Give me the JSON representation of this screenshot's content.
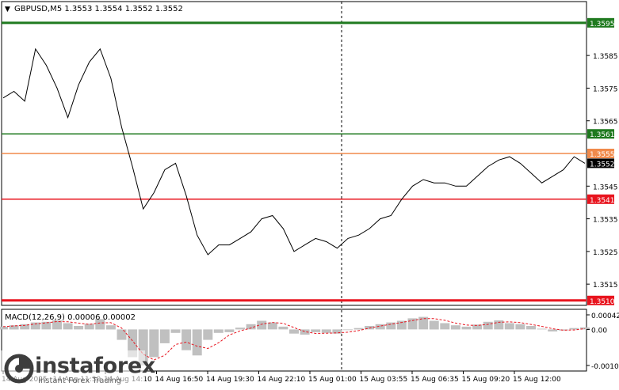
{
  "header": {
    "symbol_line": "GBPUSD,M5  1.3553 1.3554 1.3552 1.3552",
    "arrow_glyph": "▼"
  },
  "price_axis": {
    "ticks": [
      "1.3585",
      "1.3575",
      "1.3565",
      "1.3545",
      "1.3535",
      "1.3525",
      "1.3515"
    ],
    "tick_values": [
      1.3585,
      1.3575,
      1.3565,
      1.3545,
      1.3535,
      1.3525,
      1.3515
    ],
    "range": [
      1.35085,
      1.36015
    ]
  },
  "levels": [
    {
      "name": "level-1-3595",
      "label": "1.3595",
      "value": 1.3595,
      "color": "#1f7a1f",
      "label_bg": "#1f7a1f",
      "label_color": "#ffffff"
    },
    {
      "name": "level-1-3561",
      "label": "1.3561",
      "value": 1.3561,
      "color": "#1f7a1f",
      "label_bg": "#1f7a1f",
      "label_color": "#ffffff"
    },
    {
      "name": "level-1-3555",
      "label": "1.3555",
      "value": 1.3555,
      "color": "#f08a4b",
      "label_bg": "#f08a4b",
      "label_color": "#ffffff"
    },
    {
      "name": "level-1-3541",
      "label": "1.3541",
      "value": 1.3541,
      "color": "#e8141e",
      "label_bg": "#e8141e",
      "label_color": "#ffffff"
    },
    {
      "name": "level-1-3510",
      "label": "1.3510",
      "value": 1.351,
      "color": "#e8141e",
      "label_bg": "#e8141e",
      "label_color": "#ffffff"
    }
  ],
  "current_price": {
    "label": "1.3552",
    "value": 1.3552
  },
  "time_axis": {
    "labels": [
      "14 Aug 2025",
      "14 Aug 11:30",
      "14 Aug 14:10",
      "14 Aug 16:50",
      "14 Aug 19:30",
      "14 Aug 22:10",
      "15 Aug 01:00",
      "15 Aug 03:55",
      "15 Aug 06:35",
      "15 Aug 09:20",
      "15 Aug 12:00"
    ]
  },
  "macd": {
    "title": "MACD(12,26,9) 0.00006 0.00002",
    "ticks": [
      "0.00042",
      "0.00",
      "-0.00104"
    ],
    "tick_values": [
      0.00042,
      0.0,
      -0.00104
    ]
  },
  "colors": {
    "price_line": "#000000",
    "histogram": "#c0c0c0",
    "signal": "#e8141e",
    "border": "#000000",
    "grid_text": "#000000"
  },
  "chart_data": {
    "type": "line",
    "title": "GBPUSD,M5",
    "symbol": "GBPUSD",
    "timeframe": "M5",
    "ohlc_last": {
      "open": 1.3553,
      "high": 1.3554,
      "low": 1.3552,
      "close": 1.3552
    },
    "x": [
      "14 Aug 09:00",
      "14 Aug 09:30",
      "14 Aug 10:00",
      "14 Aug 10:30",
      "14 Aug 11:00",
      "14 Aug 11:30",
      "14 Aug 12:00",
      "14 Aug 12:30",
      "14 Aug 13:00",
      "14 Aug 13:30",
      "14 Aug 14:10",
      "14 Aug 14:30",
      "14 Aug 15:00",
      "14 Aug 15:30",
      "14 Aug 16:00",
      "14 Aug 16:30",
      "14 Aug 16:50",
      "14 Aug 17:30",
      "14 Aug 18:00",
      "14 Aug 18:30",
      "14 Aug 19:00",
      "14 Aug 19:30",
      "14 Aug 20:00",
      "14 Aug 20:30",
      "14 Aug 21:00",
      "14 Aug 21:30",
      "14 Aug 22:10",
      "14 Aug 22:30",
      "14 Aug 23:00",
      "14 Aug 23:30",
      "15 Aug 00:00",
      "15 Aug 00:30",
      "15 Aug 01:00",
      "15 Aug 01:30",
      "15 Aug 02:00",
      "15 Aug 02:30",
      "15 Aug 03:00",
      "15 Aug 03:30",
      "15 Aug 03:55",
      "15 Aug 04:30",
      "15 Aug 05:00",
      "15 Aug 05:30",
      "15 Aug 06:00",
      "15 Aug 06:35",
      "15 Aug 07:00",
      "15 Aug 07:30",
      "15 Aug 08:00",
      "15 Aug 08:30",
      "15 Aug 09:00",
      "15 Aug 09:20",
      "15 Aug 10:00",
      "15 Aug 10:30",
      "15 Aug 11:00",
      "15 Aug 11:30",
      "15 Aug 12:00"
    ],
    "series": [
      {
        "name": "GBPUSD",
        "values": [
          1.3572,
          1.3574,
          1.3571,
          1.3587,
          1.3582,
          1.3575,
          1.3566,
          1.3576,
          1.3583,
          1.3587,
          1.3578,
          1.3563,
          1.3551,
          1.3538,
          1.3543,
          1.355,
          1.3552,
          1.3542,
          1.353,
          1.3524,
          1.3527,
          1.3527,
          1.3529,
          1.3531,
          1.3535,
          1.3536,
          1.3532,
          1.3525,
          1.3527,
          1.3529,
          1.3528,
          1.3526,
          1.3529,
          1.353,
          1.3532,
          1.3535,
          1.3536,
          1.3541,
          1.3545,
          1.3547,
          1.3546,
          1.3546,
          1.3545,
          1.3545,
          1.3548,
          1.3551,
          1.3553,
          1.3554,
          1.3552,
          1.3549,
          1.3546,
          1.3548,
          1.355,
          1.3554,
          1.3552
        ]
      },
      {
        "name": "MACD histogram",
        "values": [
          8e-05,
          0.00012,
          0.00015,
          0.0002,
          0.00022,
          0.00026,
          0.00018,
          0.0001,
          0.00016,
          0.0003,
          0.00012,
          -0.0003,
          -0.0008,
          -0.00104,
          -0.0008,
          -0.0004,
          -0.0001,
          -0.0006,
          -0.00075,
          -0.0003,
          -0.0001,
          -8e-05,
          5e-05,
          0.00015,
          0.00025,
          0.0002,
          8e-05,
          -0.00012,
          -0.00015,
          -8e-05,
          -0.0001,
          -0.00012,
          -2e-05,
          4e-05,
          0.0001,
          0.00015,
          0.0002,
          0.00025,
          0.00032,
          0.00036,
          0.00025,
          0.00018,
          0.00012,
          8e-05,
          0.00014,
          0.00022,
          0.00026,
          0.00018,
          0.00015,
          0.0001,
          2e-05,
          -6e-05,
          -3e-05,
          4e-05,
          6e-05
        ]
      }
    ],
    "ylim": [
      1.35085,
      1.36015
    ],
    "macd_ylim": [
      -0.00104,
      0.00042
    ]
  }
}
